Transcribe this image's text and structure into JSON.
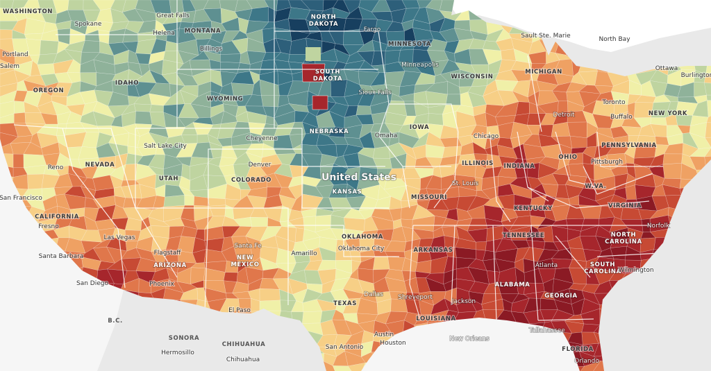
{
  "map": {
    "country_label": "United States",
    "palette": [
      "#173f5f",
      "#2d5f7a",
      "#3d7788",
      "#5e9091",
      "#8fb29a",
      "#bfd4a0",
      "#f0f0a8",
      "#f7cf86",
      "#efa163",
      "#e0774b",
      "#c74a34",
      "#a6262c",
      "#8b1a24"
    ],
    "water_color": "#ffffff",
    "land_color": "#e9e9e9",
    "border_color": "#ffffff",
    "states": [
      {
        "name": "WASHINGTON"
      },
      {
        "name": "MONTANA"
      },
      {
        "name": "NORTH DAKOTA"
      },
      {
        "name": "MINNESOTA"
      },
      {
        "name": "OREGON"
      },
      {
        "name": "IDAHO"
      },
      {
        "name": "SOUTH DAKOTA"
      },
      {
        "name": "WISCONSIN"
      },
      {
        "name": "MICHIGAN"
      },
      {
        "name": "WYOMING"
      },
      {
        "name": "IOWA"
      },
      {
        "name": "NEBRASKA"
      },
      {
        "name": "NEW YORK"
      },
      {
        "name": "PENNSYLVANIA"
      },
      {
        "name": "ILLINOIS"
      },
      {
        "name": "INDIANA"
      },
      {
        "name": "OHIO"
      },
      {
        "name": "NEVADA"
      },
      {
        "name": "UTAH"
      },
      {
        "name": "COLORADO"
      },
      {
        "name": "KANSAS"
      },
      {
        "name": "MISSOURI"
      },
      {
        "name": "KENTUCKY"
      },
      {
        "name": "VIRGINIA"
      },
      {
        "name": "W.VA."
      },
      {
        "name": "CALIFORNIA"
      },
      {
        "name": "TENNESSEE"
      },
      {
        "name": "NORTH CAROLINA"
      },
      {
        "name": "OKLAHOMA"
      },
      {
        "name": "ARKANSAS"
      },
      {
        "name": "ARIZONA"
      },
      {
        "name": "NEW MEXICO"
      },
      {
        "name": "SOUTH CAROLINA"
      },
      {
        "name": "ALABAMA"
      },
      {
        "name": "GEORGIA"
      },
      {
        "name": "TEXAS"
      },
      {
        "name": "LOUISIANA"
      },
      {
        "name": "FLORIDA"
      }
    ],
    "cities": [
      {
        "name": "Spokane"
      },
      {
        "name": "Great Falls"
      },
      {
        "name": "Helena"
      },
      {
        "name": "Portland"
      },
      {
        "name": "Salem"
      },
      {
        "name": "Billings"
      },
      {
        "name": "Fargo"
      },
      {
        "name": "Sault Ste. Marie"
      },
      {
        "name": "North Bay"
      },
      {
        "name": "Ottawa"
      },
      {
        "name": "Burlington"
      },
      {
        "name": "Minneapolis"
      },
      {
        "name": "Sioux Falls"
      },
      {
        "name": "Toronto"
      },
      {
        "name": "Buffalo"
      },
      {
        "name": "Detroit"
      },
      {
        "name": "Cheyenne"
      },
      {
        "name": "Omaha"
      },
      {
        "name": "Chicago"
      },
      {
        "name": "Salt Lake City"
      },
      {
        "name": "Reno"
      },
      {
        "name": "Denver"
      },
      {
        "name": "Pittsburgh"
      },
      {
        "name": "San Francisco"
      },
      {
        "name": "St. Louis"
      },
      {
        "name": "Fresno"
      },
      {
        "name": "Norfolk"
      },
      {
        "name": "Las Vegas"
      },
      {
        "name": "Oklahoma City"
      },
      {
        "name": "Flagstaff"
      },
      {
        "name": "Santa Fe"
      },
      {
        "name": "Amarillo"
      },
      {
        "name": "Santa Barbara"
      },
      {
        "name": "Atlanta"
      },
      {
        "name": "Wilmington"
      },
      {
        "name": "Phoenix"
      },
      {
        "name": "San Diego"
      },
      {
        "name": "Dallas"
      },
      {
        "name": "Shreveport"
      },
      {
        "name": "Jackson"
      },
      {
        "name": "El Paso"
      },
      {
        "name": "Tallahassee"
      },
      {
        "name": "Austin"
      },
      {
        "name": "Houston"
      },
      {
        "name": "New Orleans"
      },
      {
        "name": "San Antonio"
      },
      {
        "name": "Hermosillo"
      },
      {
        "name": "Chihuahua"
      },
      {
        "name": "Orlando"
      }
    ],
    "regions": [
      {
        "name": "SONORA"
      },
      {
        "name": "CHIHUAHUA"
      },
      {
        "name": "B.C."
      }
    ]
  }
}
